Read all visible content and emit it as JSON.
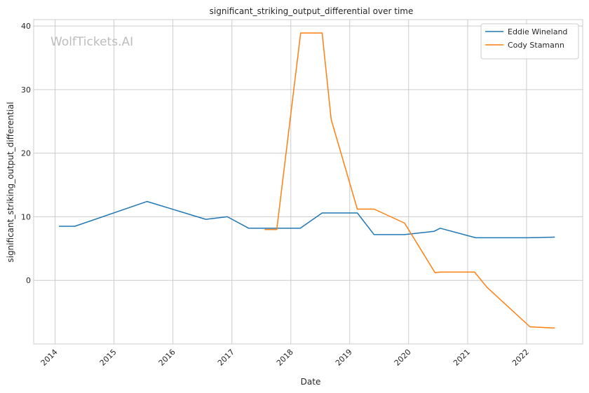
{
  "chart_data": {
    "type": "line",
    "title": "significant_striking_output_differential over time",
    "xlabel": "Date",
    "ylabel": "significant_striking_output_differential",
    "x_ticks": [
      "2014",
      "2015",
      "2016",
      "2017",
      "2018",
      "2019",
      "2020",
      "2021",
      "2022"
    ],
    "y_ticks": [
      0,
      10,
      20,
      30,
      40
    ],
    "xlim": [
      "2013-08-21",
      "2022-12-15"
    ],
    "ylim": [
      -10,
      41
    ],
    "grid": true,
    "legend_position": "top-right",
    "watermark": "WolfTickets.AI",
    "series": [
      {
        "name": "Eddie Wineland",
        "color": "#1f77b4",
        "points": [
          [
            "2014-01-25",
            8.5
          ],
          [
            "2014-05-03",
            8.5
          ],
          [
            "2015-07-25",
            12.4
          ],
          [
            "2016-07-23",
            9.6
          ],
          [
            "2016-12-03",
            10.0
          ],
          [
            "2017-04-15",
            8.2
          ],
          [
            "2017-10-01",
            8.2
          ],
          [
            "2018-03-01",
            8.2
          ],
          [
            "2018-07-14",
            10.6
          ],
          [
            "2019-02-17",
            10.6
          ],
          [
            "2019-06-01",
            7.2
          ],
          [
            "2019-12-07",
            7.2
          ],
          [
            "2020-06-06",
            7.7
          ],
          [
            "2020-07-15",
            8.2
          ],
          [
            "2021-02-20",
            6.7
          ],
          [
            "2022-01-15",
            6.7
          ],
          [
            "2022-06-25",
            6.8
          ]
        ]
      },
      {
        "name": "Cody Stamann",
        "color": "#ff7f0e",
        "points": [
          [
            "2017-07-22",
            8.0
          ],
          [
            "2017-10-06",
            8.0
          ],
          [
            "2018-03-03",
            38.9
          ],
          [
            "2018-07-14",
            38.9
          ],
          [
            "2018-09-08",
            25.3
          ],
          [
            "2019-02-17",
            11.2
          ],
          [
            "2019-06-01",
            11.2
          ],
          [
            "2019-12-07",
            9.0
          ],
          [
            "2020-06-13",
            1.2
          ],
          [
            "2020-07-15",
            1.3
          ],
          [
            "2021-02-13",
            1.3
          ],
          [
            "2021-05-01",
            -1.1
          ],
          [
            "2022-01-22",
            -7.3
          ],
          [
            "2022-06-25",
            -7.5
          ]
        ]
      }
    ]
  }
}
